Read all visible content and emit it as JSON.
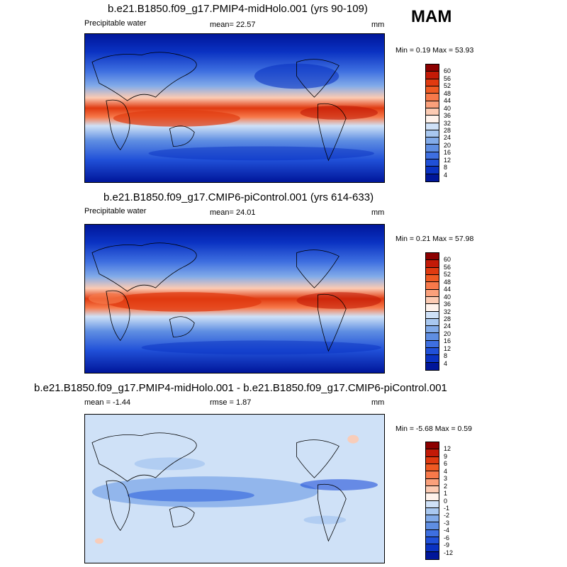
{
  "season": "MAM",
  "panels": [
    {
      "title": "b.e21.B1850.f09_g17.PMIP4-midHolo.001 (yrs 90-109)",
      "left_label": "Precipitable water",
      "center_label": "mean=  22.57",
      "units": "mm",
      "minmax": "Min =   0.19 Max =  53.93"
    },
    {
      "title": "b.e21.B1850.f09_g17.CMIP6-piControl.001 (yrs 614-633)",
      "left_label": "Precipitable water",
      "center_label": "mean=  24.01",
      "units": "mm",
      "minmax": "Min =   0.21 Max =  57.98"
    },
    {
      "title": "b.e21.B1850.f09_g17.PMIP4-midHolo.001 - b.e21.B1850.f09_g17.CMIP6-piControl.001",
      "left_label": "mean =  -1.44",
      "center_label": "rmse =   1.87",
      "units": "mm",
      "minmax": "Min =  -5.68 Max =   0.59"
    }
  ],
  "colorbars": {
    "abs": {
      "labels": [
        "60",
        "56",
        "52",
        "48",
        "44",
        "40",
        "36",
        "32",
        "28",
        "24",
        "20",
        "16",
        "12",
        "8",
        "4"
      ],
      "colors": [
        "#8c0000",
        "#c31a07",
        "#e03a10",
        "#ef5a23",
        "#f7794a",
        "#faa07b",
        "#fccbb3",
        "#fff3ec",
        "#cfe1f7",
        "#a9c8f0",
        "#82abe9",
        "#5f8ee2",
        "#3e6fe0",
        "#2050d8",
        "#0a32c2",
        "#00169a"
      ]
    },
    "diff": {
      "labels": [
        "12",
        "9",
        "6",
        "4",
        "3",
        "2",
        "1",
        "0",
        "-1",
        "-2",
        "-3",
        "-4",
        "-6",
        "-9",
        "-12"
      ],
      "colors": [
        "#8c0000",
        "#c31a07",
        "#e03a10",
        "#ef5a23",
        "#f7794a",
        "#faa07b",
        "#fccbb3",
        "#fff3ec",
        "#cfe1f7",
        "#a9c8f0",
        "#82abe9",
        "#5f8ee2",
        "#3e6fe0",
        "#2050d8",
        "#0a32c2",
        "#00169a"
      ]
    }
  }
}
